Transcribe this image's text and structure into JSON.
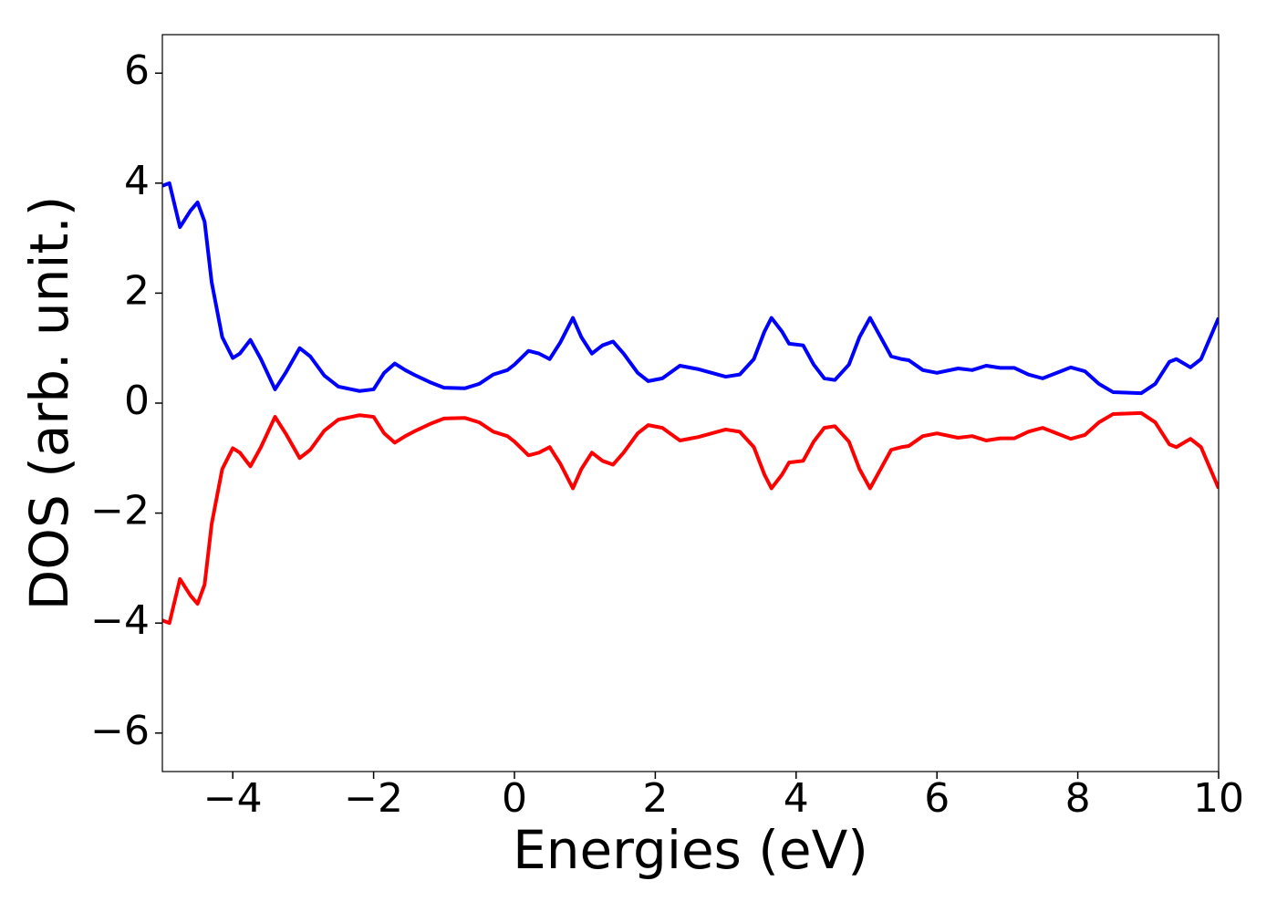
{
  "chart_data": {
    "type": "line",
    "xlabel": "Energies (eV)",
    "ylabel": "DOS (arb. unit.)",
    "x": [
      -5,
      -4.9,
      -4.75,
      -4.6,
      -4.5,
      -4.4,
      -4.3,
      -4.15,
      -4.0,
      -3.9,
      -3.75,
      -3.6,
      -3.4,
      -3.25,
      -3.05,
      -2.9,
      -2.7,
      -2.5,
      -2.2,
      -2.0,
      -1.85,
      -1.7,
      -1.55,
      -1.4,
      -1.2,
      -1.0,
      -0.7,
      -0.5,
      -0.3,
      -0.1,
      0.0,
      0.2,
      0.35,
      0.5,
      0.65,
      0.83,
      0.95,
      1.1,
      1.25,
      1.4,
      1.55,
      1.75,
      1.9,
      2.1,
      2.35,
      2.6,
      2.8,
      3.0,
      3.2,
      3.4,
      3.55,
      3.65,
      3.8,
      3.9,
      4.1,
      4.25,
      4.4,
      4.55,
      4.75,
      4.9,
      5.05,
      5.2,
      5.35,
      5.5,
      5.6,
      5.8,
      6.0,
      6.3,
      6.5,
      6.7,
      6.9,
      7.1,
      7.3,
      7.5,
      7.7,
      7.9,
      8.1,
      8.3,
      8.5,
      8.9,
      9.1,
      9.3,
      9.4,
      9.6,
      9.75,
      9.9,
      10
    ],
    "series": [
      {
        "color": "#0000ff",
        "values": [
          3.95,
          4.0,
          3.2,
          3.5,
          3.65,
          3.3,
          2.2,
          1.2,
          0.82,
          0.9,
          1.15,
          0.8,
          0.25,
          0.55,
          1.0,
          0.85,
          0.5,
          0.3,
          0.22,
          0.25,
          0.55,
          0.72,
          0.6,
          0.5,
          0.38,
          0.28,
          0.27,
          0.35,
          0.52,
          0.6,
          0.7,
          0.95,
          0.9,
          0.8,
          1.1,
          1.55,
          1.2,
          0.9,
          1.05,
          1.12,
          0.9,
          0.55,
          0.4,
          0.45,
          0.68,
          0.62,
          0.55,
          0.48,
          0.52,
          0.8,
          1.3,
          1.55,
          1.3,
          1.08,
          1.05,
          0.7,
          0.45,
          0.42,
          0.7,
          1.2,
          1.55,
          1.2,
          0.85,
          0.8,
          0.78,
          0.6,
          0.55,
          0.63,
          0.6,
          0.68,
          0.64,
          0.64,
          0.52,
          0.45,
          0.55,
          0.65,
          0.58,
          0.35,
          0.2,
          0.18,
          0.35,
          0.75,
          0.8,
          0.65,
          0.8,
          1.25,
          1.55
        ]
      },
      {
        "color": "#ff0000",
        "values": [
          -3.95,
          -4.0,
          -3.2,
          -3.5,
          -3.65,
          -3.3,
          -2.2,
          -1.2,
          -0.82,
          -0.9,
          -1.15,
          -0.8,
          -0.25,
          -0.55,
          -1.0,
          -0.85,
          -0.5,
          -0.3,
          -0.22,
          -0.25,
          -0.55,
          -0.72,
          -0.6,
          -0.5,
          -0.38,
          -0.28,
          -0.27,
          -0.35,
          -0.52,
          -0.6,
          -0.7,
          -0.95,
          -0.9,
          -0.8,
          -1.1,
          -1.55,
          -1.2,
          -0.9,
          -1.05,
          -1.12,
          -0.9,
          -0.55,
          -0.4,
          -0.45,
          -0.68,
          -0.62,
          -0.55,
          -0.48,
          -0.52,
          -0.8,
          -1.3,
          -1.55,
          -1.3,
          -1.08,
          -1.05,
          -0.7,
          -0.45,
          -0.42,
          -0.7,
          -1.2,
          -1.55,
          -1.2,
          -0.85,
          -0.8,
          -0.78,
          -0.6,
          -0.55,
          -0.63,
          -0.6,
          -0.68,
          -0.64,
          -0.64,
          -0.52,
          -0.45,
          -0.55,
          -0.65,
          -0.58,
          -0.35,
          -0.2,
          -0.18,
          -0.35,
          -0.75,
          -0.8,
          -0.65,
          -0.8,
          -1.25,
          -1.55
        ]
      }
    ],
    "xlim": [
      -5,
      10
    ],
    "ylim": [
      -6.7,
      6.7
    ],
    "xticks": [
      {
        "value": -4,
        "label": "−4"
      },
      {
        "value": -2,
        "label": "−2"
      },
      0,
      2,
      4,
      6,
      8,
      10
    ],
    "yticks": [
      {
        "value": -6,
        "label": "−6"
      },
      {
        "value": -4,
        "label": "−4"
      },
      {
        "value": -2,
        "label": "−2"
      },
      0,
      2,
      4,
      6
    ],
    "grid": false
  }
}
